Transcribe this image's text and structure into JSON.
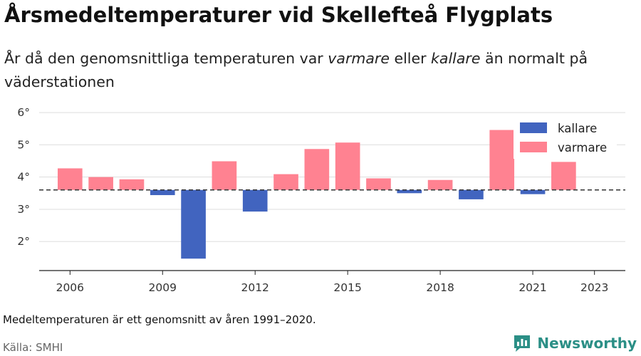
{
  "title": "Årsmedeltemperaturer vid Skellefteå Flygplats",
  "subtitle": {
    "part1": "År då den genomsnittliga temperaturen var ",
    "warm_word": "varmare",
    "part2": " eller ",
    "cold_word": "kallare",
    "part3": " än normalt på väderstationen"
  },
  "note": "Medeltemperaturen är ett genomsnitt av åren 1991–2020.",
  "source": "Källa: SMHI",
  "brand": "Newsworthy",
  "colors": {
    "warmer": "#ff8291",
    "colder": "#4164bf",
    "brand": "#2b8f86"
  },
  "chart_data": {
    "type": "bar",
    "baseline": 3.6,
    "categories": [
      2006,
      2007,
      2008,
      2009,
      2010,
      2011,
      2012,
      2013,
      2014,
      2015,
      2016,
      2017,
      2018,
      2019,
      2020,
      2021,
      2022
    ],
    "values": [
      4.27,
      4.0,
      3.93,
      3.44,
      1.47,
      4.49,
      2.93,
      4.09,
      4.87,
      5.07,
      3.96,
      3.5,
      3.91,
      3.31,
      5.46,
      3.47,
      4.47
    ],
    "xlim": [
      2005,
      2024
    ],
    "xticks": [
      2006,
      2009,
      2012,
      2015,
      2018,
      2021,
      2023
    ],
    "ylim": [
      1.1,
      6.4
    ],
    "yticks": [
      2,
      3,
      4,
      5,
      6
    ],
    "ytick_suffix": "°",
    "legend": [
      "kallare",
      "varmare"
    ],
    "legend_position": "top-right",
    "grid": true
  }
}
